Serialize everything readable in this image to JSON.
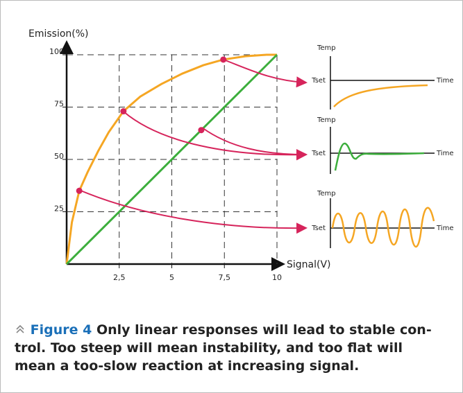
{
  "chart_data": {
    "type": "line",
    "ylabel": "Emission(%)",
    "xlabel": "Signal(V)",
    "xlim": [
      0,
      10
    ],
    "ylim": [
      0,
      100
    ],
    "xticks": [
      {
        "value": 2.5,
        "label": "2,5"
      },
      5,
      {
        "value": 7.5,
        "label": "7,5"
      },
      10
    ],
    "yticks": [
      25,
      50,
      75,
      100
    ],
    "grid": true,
    "series": [
      {
        "color": "#f5a623",
        "x": [
          0,
          0.25,
          0.6,
          1,
          1.5,
          2,
          2.7,
          3.5,
          4.5,
          5.5,
          6.5,
          7.45,
          8.5,
          9.5,
          10
        ],
        "values": [
          0,
          20,
          35,
          44,
          54,
          63,
          73,
          80,
          86,
          91,
          95,
          97.7,
          99.3,
          100,
          100
        ]
      },
      {
        "color": "#3cae3c",
        "x": [
          0,
          10
        ],
        "values": [
          0,
          100
        ]
      }
    ],
    "highlight_points": [
      {
        "x": 7.45,
        "y": 97.7
      },
      {
        "x": 2.7,
        "y": 73
      },
      {
        "x": 6.4,
        "y": 64
      },
      {
        "x": 0.6,
        "y": 35
      }
    ],
    "highlight_color": "#d6245b",
    "insets": [
      {
        "ylabel": "Temp",
        "ref": "Tset",
        "xlabel": "Time"
      },
      {
        "ylabel": "Temp",
        "ref": "Tset",
        "xlabel": "Time"
      },
      {
        "ylabel": "Temp",
        "ref": "Tset",
        "xlabel": "Time"
      }
    ]
  },
  "caption": {
    "label": "Figure 4",
    "lines": [
      "Only linear responses will lead to stable con-",
      "trol. Too steep will mean instability, and too flat will",
      "mean a too-slow reaction at increasing signal."
    ]
  }
}
